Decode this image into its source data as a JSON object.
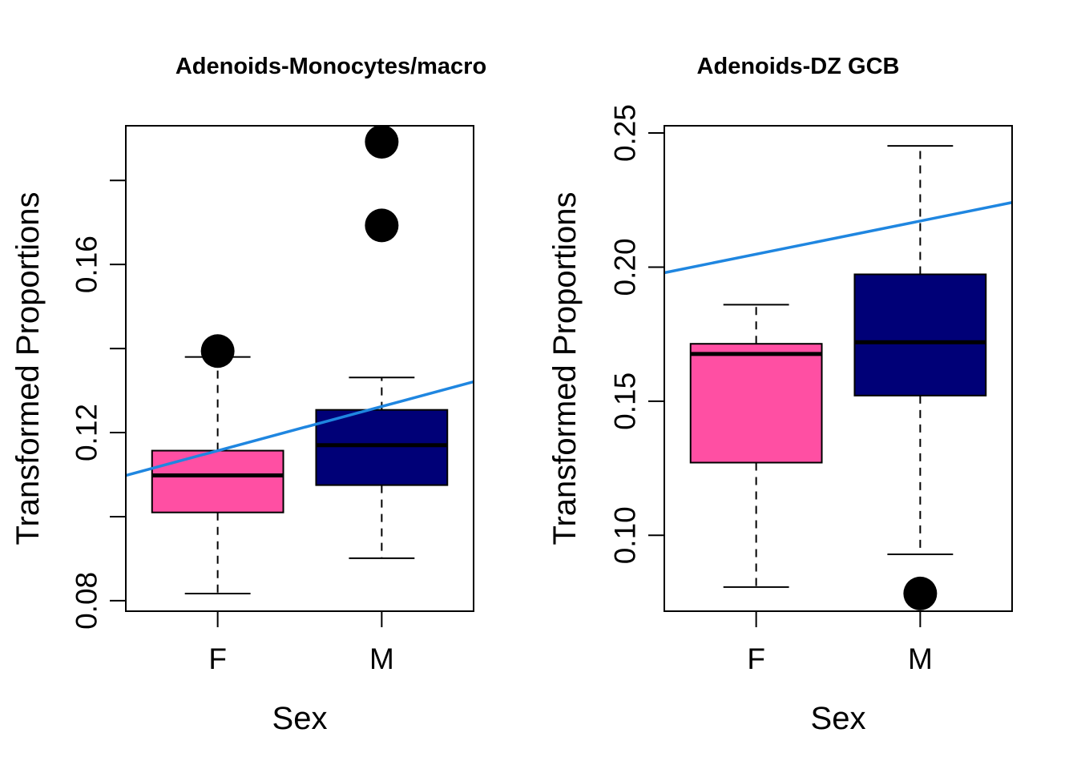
{
  "chart_data": [
    {
      "type": "box",
      "title": "Adenoids-Monocytes/macro",
      "xlabel": "Sex",
      "ylabel": "Transformed Proportions",
      "categories": [
        "F",
        "M"
      ],
      "ylim": [
        0.0775,
        0.193
      ],
      "yticks": [
        0.08,
        0.1,
        0.12,
        0.14,
        0.16,
        0.18
      ],
      "ytick_labels": [
        "0.08",
        "",
        "0.12",
        "",
        "0.16",
        ""
      ],
      "boxes": [
        {
          "name": "F",
          "color": "#FF4FA3",
          "whisker_low": 0.0817,
          "q1": 0.101,
          "median": 0.1098,
          "q3": 0.1157,
          "whisker_high": 0.138,
          "outliers": [
            0.1394
          ]
        },
        {
          "name": "M",
          "color": "#000077",
          "whisker_low": 0.0901,
          "q1": 0.1075,
          "median": 0.117,
          "q3": 0.1254,
          "whisker_high": 0.1331,
          "outliers": [
            0.1693,
            0.1892
          ]
        }
      ],
      "trend_line": {
        "color": "#1F86E0",
        "y_at_left_edge": 0.1098,
        "y_at_right_edge": 0.1321
      }
    },
    {
      "type": "box",
      "title": "Adenoids-DZ GCB",
      "xlabel": "Sex",
      "ylabel": "Transformed Proportions",
      "categories": [
        "F",
        "M"
      ],
      "ylim": [
        0.0717,
        0.2527
      ],
      "yticks": [
        0.1,
        0.15,
        0.2,
        0.25
      ],
      "ytick_labels": [
        "0.10",
        "0.15",
        "0.20",
        "0.25"
      ],
      "boxes": [
        {
          "name": "F",
          "color": "#FF4FA3",
          "whisker_low": 0.0807,
          "q1": 0.1271,
          "median": 0.1676,
          "q3": 0.1714,
          "whisker_high": 0.186,
          "outliers": []
        },
        {
          "name": "M",
          "color": "#000077",
          "whisker_low": 0.0929,
          "q1": 0.1521,
          "median": 0.172,
          "q3": 0.1973,
          "whisker_high": 0.2452,
          "outliers": [
            0.0783
          ]
        }
      ],
      "trend_line": {
        "color": "#1F86E0",
        "y_at_left_edge": 0.1979,
        "y_at_right_edge": 0.2241
      }
    }
  ]
}
